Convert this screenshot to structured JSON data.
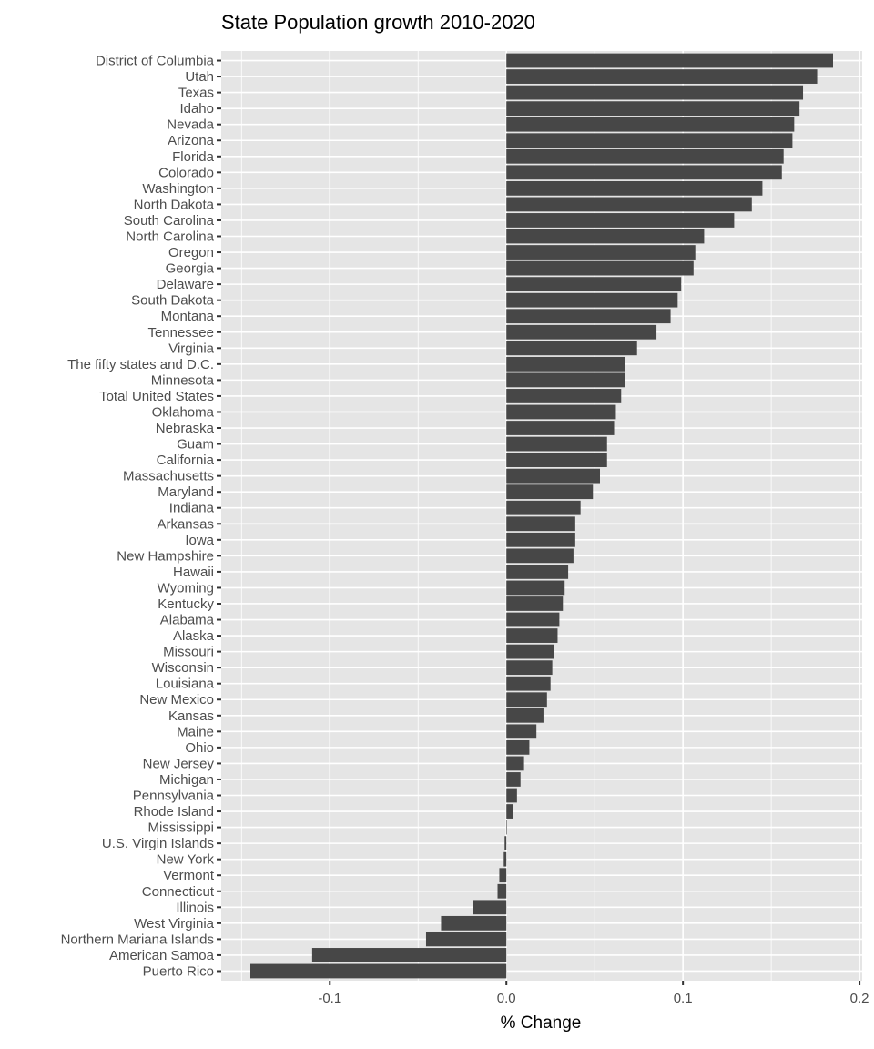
{
  "chart_data": {
    "type": "bar",
    "orientation": "horizontal",
    "title": "State Population growth 2010-2020",
    "xlabel": "% Change",
    "ylabel": "",
    "xlim": [
      -0.1615,
      0.2015
    ],
    "xticks": [
      -0.1,
      0.0,
      0.1,
      0.2
    ],
    "xtick_labels": [
      "-0.1",
      "0.0",
      "0.1",
      "0.2"
    ],
    "grid": true,
    "categories": [
      "District of Columbia",
      "Utah",
      "Texas",
      "Idaho",
      "Nevada",
      "Arizona",
      "Florida",
      "Colorado",
      "Washington",
      "North Dakota",
      "South Carolina",
      "North Carolina",
      "Oregon",
      "Georgia",
      "Delaware",
      "South Dakota",
      "Montana",
      "Tennessee",
      "Virginia",
      "The fifty states and D.C.",
      "Minnesota",
      "Total United States",
      "Oklahoma",
      "Nebraska",
      "Guam",
      "California",
      "Massachusetts",
      "Maryland",
      "Indiana",
      "Arkansas",
      "Iowa",
      "New Hampshire",
      "Hawaii",
      "Wyoming",
      "Kentucky",
      "Alabama",
      "Alaska",
      "Missouri",
      "Wisconsin",
      "Louisiana",
      "New Mexico",
      "Kansas",
      "Maine",
      "Ohio",
      "New Jersey",
      "Michigan",
      "Pennsylvania",
      "Rhode Island",
      "Mississippi",
      "U.S. Virgin Islands",
      "New York",
      "Vermont",
      "Connecticut",
      "Illinois",
      "West Virginia",
      "Northern Mariana Islands",
      "American Samoa",
      "Puerto Rico"
    ],
    "values": [
      0.185,
      0.176,
      0.168,
      0.166,
      0.163,
      0.162,
      0.157,
      0.156,
      0.145,
      0.139,
      0.129,
      0.112,
      0.107,
      0.106,
      0.099,
      0.097,
      0.093,
      0.085,
      0.074,
      0.067,
      0.067,
      0.065,
      0.062,
      0.061,
      0.057,
      0.057,
      0.053,
      0.049,
      0.042,
      0.039,
      0.039,
      0.038,
      0.035,
      0.033,
      0.032,
      0.03,
      0.029,
      0.027,
      0.026,
      0.025,
      0.023,
      0.021,
      0.017,
      0.013,
      0.01,
      0.008,
      0.006,
      0.004,
      0.0,
      -0.001,
      -0.0015,
      -0.004,
      -0.005,
      -0.019,
      -0.037,
      -0.0455,
      -0.11,
      -0.145
    ],
    "bar_color": "#474747",
    "panel_color": "#e5e5e5"
  }
}
